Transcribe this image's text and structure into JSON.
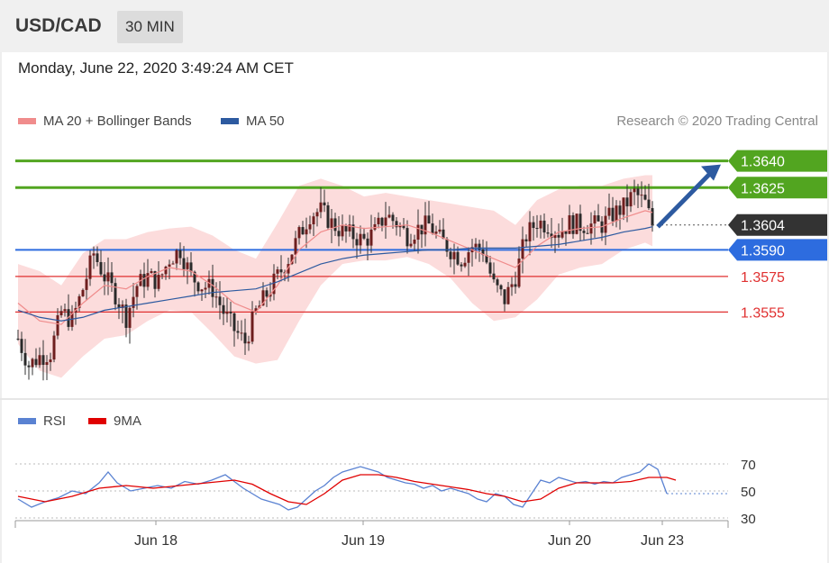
{
  "header": {
    "pair": "USD/CAD",
    "timeframe": "30 MIN"
  },
  "datetime": "Monday, June 22, 2020 3:49:24 AM CET",
  "legend_main": [
    {
      "label": "MA 20 + Bollinger Bands",
      "color": "#f08c8c"
    },
    {
      "label": "MA 50",
      "color": "#2d5aa0"
    }
  ],
  "copyright": "Research © 2020 Trading Central",
  "legend_rsi": [
    {
      "label": "RSI",
      "color": "#5a82d2"
    },
    {
      "label": "9MA",
      "color": "#e00000"
    }
  ],
  "colors": {
    "up": "#6e1e1e",
    "down": "#2a2a2a",
    "green": "#52a520",
    "blue": "#2d6cdf",
    "red": "#e03030",
    "band": "#fcdcdc"
  },
  "chart_data": [
    {
      "type": "candlestick",
      "title": "USD/CAD 30 MIN",
      "ylim": [
        1.3505,
        1.3652
      ],
      "x_ticks": [
        "Jun 18",
        "Jun 19",
        "Jun 20",
        "Jun 23"
      ],
      "current_price": "1.3604",
      "levels": [
        {
          "value": 1.364,
          "label": "1.3640",
          "kind": "resistance",
          "color": "#52a520"
        },
        {
          "value": 1.3625,
          "label": "1.3625",
          "kind": "resistance",
          "color": "#52a520"
        },
        {
          "value": 1.359,
          "label": "1.3590",
          "kind": "pivot",
          "color": "#2d6cdf"
        },
        {
          "value": 1.3575,
          "label": "1.3575",
          "kind": "support",
          "color": "#e03030"
        },
        {
          "value": 1.3555,
          "label": "1.3555",
          "kind": "support",
          "color": "#e03030"
        }
      ],
      "close_path": [
        [
          0,
          1.354
        ],
        [
          3,
          1.3525
        ],
        [
          6,
          1.353
        ],
        [
          9,
          1.3532
        ],
        [
          12,
          1.3555
        ],
        [
          15,
          1.355
        ],
        [
          18,
          1.3568
        ],
        [
          21,
          1.3588
        ],
        [
          24,
          1.3575
        ],
        [
          27,
          1.3565
        ],
        [
          30,
          1.3552
        ],
        [
          33,
          1.357
        ],
        [
          36,
          1.3575
        ],
        [
          39,
          1.3572
        ],
        [
          42,
          1.3585
        ],
        [
          45,
          1.359
        ],
        [
          48,
          1.3575
        ],
        [
          51,
          1.357
        ],
        [
          54,
          1.3568
        ],
        [
          57,
          1.3555
        ],
        [
          60,
          1.3545
        ],
        [
          63,
          1.3538
        ],
        [
          66,
          1.3555
        ],
        [
          69,
          1.3565
        ],
        [
          72,
          1.3575
        ],
        [
          75,
          1.3585
        ],
        [
          78,
          1.3598
        ],
        [
          81,
          1.361
        ],
        [
          84,
          1.3612
        ],
        [
          87,
          1.3605
        ],
        [
          90,
          1.36
        ],
        [
          93,
          1.3598
        ],
        [
          96,
          1.3595
        ],
        [
          99,
          1.36
        ],
        [
          102,
          1.361
        ],
        [
          105,
          1.3605
        ],
        [
          108,
          1.3598
        ],
        [
          111,
          1.3602
        ],
        [
          114,
          1.3604
        ],
        [
          117,
          1.3596
        ],
        [
          120,
          1.359
        ],
        [
          123,
          1.3585
        ],
        [
          126,
          1.3592
        ],
        [
          129,
          1.359
        ],
        [
          132,
          1.357
        ],
        [
          135,
          1.3562
        ],
        [
          138,
          1.3575
        ],
        [
          141,
          1.3598
        ],
        [
          144,
          1.3606
        ],
        [
          147,
          1.3604
        ],
        [
          150,
          1.36
        ],
        [
          153,
          1.3605
        ],
        [
          156,
          1.3604
        ],
        [
          162,
          1.3604
        ],
        [
          165,
          1.361
        ],
        [
          168,
          1.3614
        ],
        [
          171,
          1.3622
        ],
        [
          174,
          1.3616
        ],
        [
          176,
          1.3604
        ]
      ],
      "ma20": [
        [
          0,
          1.356
        ],
        [
          6,
          1.355
        ],
        [
          12,
          1.3548
        ],
        [
          18,
          1.356
        ],
        [
          24,
          1.357
        ],
        [
          30,
          1.3568
        ],
        [
          36,
          1.3575
        ],
        [
          42,
          1.358
        ],
        [
          48,
          1.3578
        ],
        [
          54,
          1.357
        ],
        [
          60,
          1.356
        ],
        [
          66,
          1.3555
        ],
        [
          72,
          1.357
        ],
        [
          78,
          1.359
        ],
        [
          84,
          1.36
        ],
        [
          90,
          1.3604
        ],
        [
          96,
          1.3602
        ],
        [
          102,
          1.3603
        ],
        [
          108,
          1.3604
        ],
        [
          114,
          1.36
        ],
        [
          120,
          1.3595
        ],
        [
          126,
          1.359
        ],
        [
          132,
          1.3585
        ],
        [
          138,
          1.358
        ],
        [
          144,
          1.3592
        ],
        [
          150,
          1.36
        ],
        [
          156,
          1.3602
        ],
        [
          162,
          1.3603
        ],
        [
          168,
          1.3608
        ],
        [
          174,
          1.3612
        ],
        [
          176,
          1.3611
        ]
      ],
      "ma50": [
        [
          0,
          1.3556
        ],
        [
          6,
          1.3552
        ],
        [
          12,
          1.355
        ],
        [
          18,
          1.3552
        ],
        [
          24,
          1.3556
        ],
        [
          30,
          1.3558
        ],
        [
          36,
          1.356
        ],
        [
          42,
          1.3562
        ],
        [
          48,
          1.3564
        ],
        [
          54,
          1.3566
        ],
        [
          60,
          1.3567
        ],
        [
          66,
          1.3568
        ],
        [
          72,
          1.3572
        ],
        [
          78,
          1.3577
        ],
        [
          84,
          1.3582
        ],
        [
          90,
          1.3585
        ],
        [
          96,
          1.3587
        ],
        [
          102,
          1.3588
        ],
        [
          108,
          1.3589
        ],
        [
          114,
          1.359
        ],
        [
          120,
          1.359
        ],
        [
          126,
          1.3591
        ],
        [
          132,
          1.3591
        ],
        [
          138,
          1.3591
        ],
        [
          144,
          1.3592
        ],
        [
          150,
          1.3593
        ],
        [
          156,
          1.3595
        ],
        [
          162,
          1.3597
        ],
        [
          168,
          1.36
        ],
        [
          174,
          1.3602
        ],
        [
          176,
          1.3603
        ]
      ],
      "bb_upper": [
        [
          0,
          1.3582
        ],
        [
          6,
          1.3578
        ],
        [
          12,
          1.357
        ],
        [
          18,
          1.3588
        ],
        [
          24,
          1.3596
        ],
        [
          30,
          1.3596
        ],
        [
          36,
          1.36
        ],
        [
          42,
          1.3602
        ],
        [
          48,
          1.3603
        ],
        [
          54,
          1.3598
        ],
        [
          60,
          1.359
        ],
        [
          66,
          1.3585
        ],
        [
          72,
          1.3605
        ],
        [
          78,
          1.3626
        ],
        [
          84,
          1.363
        ],
        [
          90,
          1.3626
        ],
        [
          96,
          1.362
        ],
        [
          102,
          1.3622
        ],
        [
          108,
          1.362
        ],
        [
          114,
          1.3618
        ],
        [
          120,
          1.3616
        ],
        [
          126,
          1.3614
        ],
        [
          132,
          1.3612
        ],
        [
          138,
          1.3604
        ],
        [
          144,
          1.3618
        ],
        [
          150,
          1.3624
        ],
        [
          156,
          1.3626
        ],
        [
          162,
          1.3626
        ],
        [
          168,
          1.363
        ],
        [
          174,
          1.3632
        ],
        [
          176,
          1.3632
        ]
      ],
      "bb_lower": [
        [
          0,
          1.3537
        ],
        [
          6,
          1.3522
        ],
        [
          12,
          1.3518
        ],
        [
          18,
          1.353
        ],
        [
          24,
          1.354
        ],
        [
          30,
          1.3542
        ],
        [
          36,
          1.355
        ],
        [
          42,
          1.3556
        ],
        [
          48,
          1.3555
        ],
        [
          54,
          1.3543
        ],
        [
          60,
          1.353
        ],
        [
          66,
          1.3526
        ],
        [
          72,
          1.3528
        ],
        [
          78,
          1.355
        ],
        [
          84,
          1.357
        ],
        [
          90,
          1.3582
        ],
        [
          96,
          1.3584
        ],
        [
          102,
          1.3584
        ],
        [
          108,
          1.3586
        ],
        [
          114,
          1.3582
        ],
        [
          120,
          1.3574
        ],
        [
          126,
          1.356
        ],
        [
          132,
          1.355
        ],
        [
          138,
          1.3552
        ],
        [
          144,
          1.3562
        ],
        [
          150,
          1.3576
        ],
        [
          156,
          1.358
        ],
        [
          162,
          1.3582
        ],
        [
          168,
          1.359
        ],
        [
          174,
          1.3594
        ],
        [
          176,
          1.3592
        ]
      ],
      "forecast_arrow": {
        "from": 1.3604,
        "to": 1.364
      }
    },
    {
      "type": "line",
      "title": "RSI",
      "ylim": [
        20,
        80
      ],
      "y_ticks": [
        "70",
        "50",
        "30"
      ],
      "series": [
        {
          "name": "RSI",
          "values": [
            [
              0,
              44
            ],
            [
              3,
              38
            ],
            [
              6,
              42
            ],
            [
              9,
              45
            ],
            [
              12,
              50
            ],
            [
              15,
              48
            ],
            [
              18,
              56
            ],
            [
              20,
              64
            ],
            [
              22,
              56
            ],
            [
              25,
              50
            ],
            [
              28,
              52
            ],
            [
              31,
              54
            ],
            [
              34,
              52
            ],
            [
              37,
              57
            ],
            [
              40,
              55
            ],
            [
              43,
              58
            ],
            [
              46,
              62
            ],
            [
              48,
              57
            ],
            [
              50,
              52
            ],
            [
              52,
              48
            ],
            [
              54,
              44
            ],
            [
              56,
              42
            ],
            [
              58,
              40
            ],
            [
              60,
              36
            ],
            [
              62,
              38
            ],
            [
              64,
              44
            ],
            [
              66,
              50
            ],
            [
              68,
              54
            ],
            [
              70,
              60
            ],
            [
              72,
              64
            ],
            [
              74,
              66
            ],
            [
              76,
              68
            ],
            [
              78,
              66
            ],
            [
              80,
              64
            ],
            [
              82,
              60
            ],
            [
              84,
              58
            ],
            [
              86,
              56
            ],
            [
              88,
              55
            ],
            [
              90,
              52
            ],
            [
              92,
              54
            ],
            [
              94,
              50
            ],
            [
              96,
              52
            ],
            [
              98,
              50
            ],
            [
              100,
              48
            ],
            [
              102,
              44
            ],
            [
              104,
              42
            ],
            [
              106,
              48
            ],
            [
              108,
              46
            ],
            [
              110,
              40
            ],
            [
              112,
              38
            ],
            [
              114,
              48
            ],
            [
              116,
              58
            ],
            [
              118,
              56
            ],
            [
              120,
              60
            ],
            [
              122,
              58
            ],
            [
              124,
              56
            ],
            [
              126,
              57
            ],
            [
              128,
              55
            ],
            [
              130,
              57
            ],
            [
              132,
              56
            ],
            [
              134,
              60
            ],
            [
              136,
              62
            ],
            [
              138,
              64
            ],
            [
              140,
              70
            ],
            [
              142,
              66
            ],
            [
              144,
              48
            ]
          ]
        },
        {
          "name": "9MA",
          "values": [
            [
              0,
              46
            ],
            [
              6,
              42
            ],
            [
              12,
              46
            ],
            [
              18,
              52
            ],
            [
              24,
              54
            ],
            [
              30,
              52
            ],
            [
              36,
              54
            ],
            [
              42,
              56
            ],
            [
              48,
              58
            ],
            [
              52,
              55
            ],
            [
              56,
              48
            ],
            [
              60,
              42
            ],
            [
              64,
              40
            ],
            [
              68,
              48
            ],
            [
              72,
              58
            ],
            [
              76,
              62
            ],
            [
              80,
              62
            ],
            [
              84,
              60
            ],
            [
              88,
              57
            ],
            [
              92,
              55
            ],
            [
              96,
              53
            ],
            [
              100,
              51
            ],
            [
              104,
              48
            ],
            [
              108,
              46
            ],
            [
              112,
              42
            ],
            [
              116,
              44
            ],
            [
              120,
              52
            ],
            [
              124,
              56
            ],
            [
              128,
              56
            ],
            [
              132,
              56
            ],
            [
              136,
              57
            ],
            [
              140,
              60
            ],
            [
              144,
              60
            ],
            [
              146,
              58
            ]
          ]
        }
      ]
    }
  ]
}
